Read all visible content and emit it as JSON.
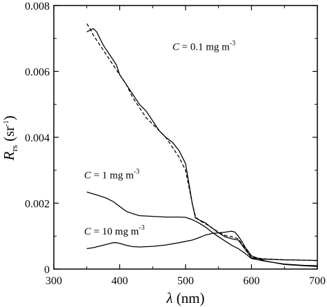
{
  "chart_data": {
    "type": "line",
    "xlabel": {
      "symbol": "λ",
      "unit": " (nm)"
    },
    "ylabel": {
      "symbol": "R",
      "subscript": "rs",
      "unit_open": " (sr",
      "unit_exp": "-1",
      "unit_close": ")"
    },
    "xlim": [
      300,
      700
    ],
    "ylim": [
      0,
      0.008
    ],
    "xticks": [
      300,
      400,
      500,
      600,
      700
    ],
    "xtick_labels": [
      "300",
      "400",
      "500",
      "600",
      "700"
    ],
    "yticks": [
      0,
      0.002,
      0.004,
      0.006,
      0.008
    ],
    "ytick_labels": [
      "0",
      "0.002",
      "0.004",
      "0.006",
      "0.008"
    ],
    "annotations": [
      {
        "var": "C",
        "text": " = 0.1 mg m",
        "exp": "-3",
        "x": 480,
        "y": 0.00665
      },
      {
        "var": "C",
        "text": " = 1 mg m",
        "exp": "-3",
        "x": 346,
        "y": 0.00275
      },
      {
        "var": "C",
        "text": " = 10 mg m",
        "exp": "-3",
        "x": 346,
        "y": 0.00105
      }
    ],
    "series": [
      {
        "style": "solid",
        "x": [
          350,
          360,
          365,
          375,
          385,
          395,
          400,
          410,
          420,
          430,
          440,
          450,
          460,
          470,
          480,
          490,
          500,
          505,
          510,
          515,
          520,
          530,
          540,
          550,
          560,
          570,
          580,
          600,
          620,
          650,
          680,
          700
        ],
        "y": [
          0.0072,
          0.0073,
          0.0072,
          0.0068,
          0.0065,
          0.0062,
          0.0059,
          0.0056,
          0.0053,
          0.005,
          0.0048,
          0.0045,
          0.0042,
          0.004,
          0.00385,
          0.0036,
          0.0032,
          0.0026,
          0.002,
          0.00155,
          0.0015,
          0.0014,
          0.00125,
          0.0011,
          0.00098,
          0.00092,
          0.00088,
          0.00034,
          0.0003,
          0.00028,
          0.00027,
          0.00026
        ]
      },
      {
        "style": "dashed",
        "x": [
          350,
          355,
          360,
          370,
          380,
          390,
          400,
          410,
          420,
          430,
          440,
          450,
          460,
          470,
          480,
          490,
          500,
          505,
          510,
          515,
          520,
          530,
          540,
          550,
          560,
          570,
          580,
          600,
          620,
          650,
          700
        ],
        "y": [
          0.00745,
          0.0073,
          0.0071,
          0.0068,
          0.0065,
          0.0062,
          0.0059,
          0.0056,
          0.0052,
          0.0049,
          0.0046,
          0.0044,
          0.0042,
          0.004,
          0.0037,
          0.0034,
          0.003,
          0.0025,
          0.002,
          0.0016,
          0.00148,
          0.00138,
          0.00125,
          0.00112,
          0.00102,
          0.00098,
          0.00092,
          0.00035,
          0.00031,
          0.00028,
          0.00026
        ]
      },
      {
        "style": "solid",
        "x": [
          350,
          360,
          370,
          380,
          390,
          400,
          410,
          420,
          430,
          450,
          470,
          490,
          500,
          510,
          520,
          530,
          540,
          550,
          560,
          570,
          580,
          590,
          600,
          620,
          650,
          680,
          700
        ],
        "y": [
          0.00234,
          0.00228,
          0.00222,
          0.00215,
          0.00205,
          0.0019,
          0.00175,
          0.00168,
          0.00162,
          0.0016,
          0.00158,
          0.00158,
          0.00157,
          0.0015,
          0.0014,
          0.00128,
          0.00112,
          0.00098,
          0.00085,
          0.00072,
          0.00062,
          0.00048,
          0.00032,
          0.00024,
          0.00015,
          0.00011,
          0.0001
        ]
      },
      {
        "style": "solid",
        "x": [
          350,
          360,
          370,
          380,
          390,
          395,
          400,
          410,
          420,
          430,
          450,
          470,
          490,
          510,
          520,
          530,
          540,
          550,
          560,
          570,
          575,
          580,
          585,
          590,
          600,
          620,
          650,
          680,
          700
        ],
        "y": [
          0.00062,
          0.00065,
          0.0007,
          0.00075,
          0.0008,
          0.0008,
          0.00078,
          0.00072,
          0.00068,
          0.00067,
          0.00069,
          0.00073,
          0.0008,
          0.00088,
          0.00095,
          0.00103,
          0.00108,
          0.0011,
          0.00112,
          0.00115,
          0.00112,
          0.001,
          0.00085,
          0.00068,
          0.0004,
          0.00025,
          0.00014,
          0.0001,
          8e-05
        ]
      }
    ]
  }
}
